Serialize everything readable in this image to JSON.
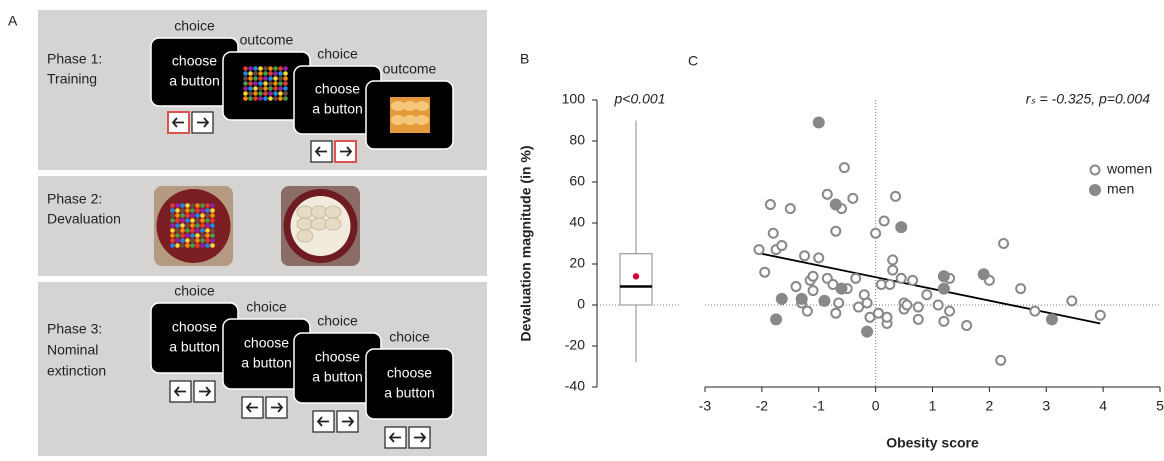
{
  "panel_a": {
    "label": "A",
    "phases": [
      {
        "title": [
          "Phase 1:",
          "Training"
        ],
        "screens": [
          {
            "caption": "choice",
            "text": [
              "choose",
              "a button"
            ]
          },
          {
            "caption": "outcome"
          },
          {
            "caption": "choice",
            "text": [
              "choose",
              "a button"
            ]
          },
          {
            "caption": "outcome"
          }
        ]
      },
      {
        "title": [
          "Phase 2:",
          "Devaluation"
        ]
      },
      {
        "title": [
          "Phase 3:",
          "Nominal",
          "extinction"
        ],
        "screens": [
          {
            "caption": "choice",
            "text": [
              "choose",
              "a button"
            ]
          },
          {
            "caption": "choice",
            "text": [
              "choose",
              "a button"
            ]
          },
          {
            "caption": "choice",
            "text": [
              "choose",
              "a button"
            ]
          },
          {
            "caption": "choice",
            "text": [
              "choose",
              "a button"
            ]
          }
        ]
      }
    ]
  },
  "chart_data": [
    {
      "type": "box",
      "label": "B",
      "ylabel": "Devaluation magnitude (in %)",
      "annotation": "p<0.001",
      "ylim": [
        -40,
        100
      ],
      "yticks": [
        -40,
        -20,
        0,
        20,
        40,
        60,
        80,
        100
      ],
      "zero_lines": true,
      "box": {
        "whislo": -28,
        "q1": 0,
        "med": 9,
        "q3": 25,
        "whishi": 90,
        "mean": 14
      },
      "color": "#888888",
      "mean_color": "#e0003c"
    },
    {
      "type": "scatter",
      "label": "C",
      "annotation": "rₛ = -0.325, p=0.004",
      "xlabel": "Obesity score",
      "xlim": [
        -3,
        5
      ],
      "xticks": [
        -3,
        -2,
        -1,
        0,
        1,
        2,
        3,
        4,
        5
      ],
      "ylim": [
        -40,
        100
      ],
      "zero_lines": true,
      "legend": "upper right",
      "series": [
        {
          "name": "women",
          "color": "#888888",
          "hollow": true,
          "x": [
            -2.05,
            -1.95,
            -1.85,
            -1.8,
            -1.75,
            -1.65,
            -1.5,
            -1.4,
            -1.3,
            -1.25,
            -1.2,
            -1.15,
            -1.1,
            -1.1,
            -1.0,
            -0.85,
            -0.85,
            -0.75,
            -0.7,
            -0.7,
            -0.65,
            -0.6,
            -0.55,
            -0.5,
            -0.4,
            -0.35,
            -0.3,
            -0.2,
            -0.15,
            -0.1,
            0.0,
            0.05,
            0.1,
            0.15,
            0.2,
            0.2,
            0.25,
            0.3,
            0.3,
            0.35,
            0.45,
            0.5,
            0.5,
            0.55,
            0.65,
            0.75,
            0.75,
            0.9,
            1.1,
            1.2,
            1.3,
            1.3,
            1.6,
            2.0,
            2.2,
            2.25,
            2.55,
            2.8,
            3.45,
            3.95
          ],
          "values": [
            27,
            16,
            49,
            35,
            27,
            29,
            47,
            9,
            1,
            24,
            -3,
            12,
            14,
            7,
            23,
            54,
            13,
            10,
            36,
            -4,
            1,
            47,
            67,
            8,
            52,
            13,
            -1,
            5,
            1,
            -6,
            35,
            -4,
            10,
            41,
            -9,
            -6,
            10,
            17,
            22,
            53,
            13,
            1,
            -2,
            0,
            12,
            -1,
            -7,
            5,
            0,
            -8,
            -3,
            13,
            -10,
            12,
            -27,
            30,
            8,
            -3,
            2,
            -5
          ]
        },
        {
          "name": "men",
          "color": "#888888",
          "hollow": false,
          "x": [
            -1.0,
            -0.7,
            0.45,
            -1.75,
            -1.65,
            -1.3,
            -0.9,
            -0.6,
            -0.15,
            1.2,
            1.2,
            1.9,
            3.1
          ],
          "values": [
            89,
            49,
            38,
            -7,
            3,
            3,
            2,
            8,
            -13,
            14,
            8,
            15,
            -7
          ]
        }
      ],
      "trend_line": {
        "x": [
          -2,
          3.95
        ],
        "values": [
          25,
          -9
        ],
        "color": "#000000"
      }
    }
  ]
}
